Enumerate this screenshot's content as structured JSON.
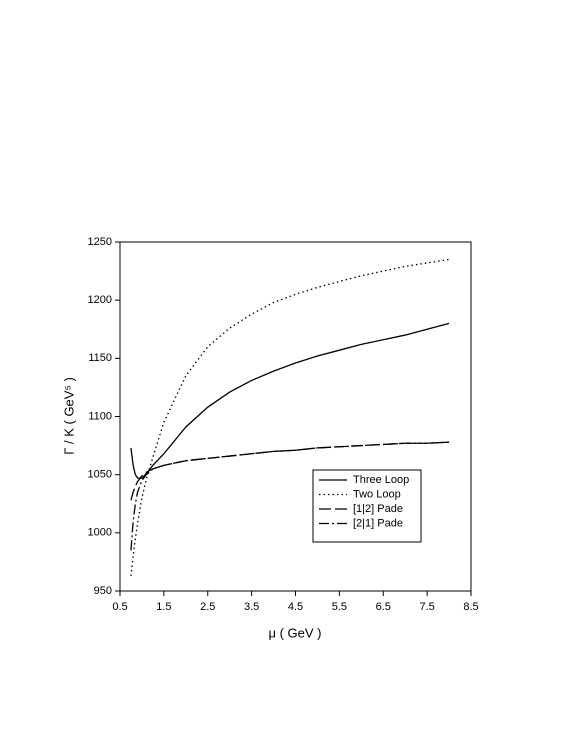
{
  "chart_data": {
    "type": "line",
    "x_label": "μ  ( GeV )",
    "y_label": "Γ / K  ( GeV⁵ )",
    "x": [
      0.75,
      0.8,
      0.85,
      0.9,
      1.0,
      1.1,
      1.25,
      1.5,
      2,
      2.5,
      3,
      3.5,
      4,
      4.5,
      5,
      5.5,
      6,
      6.5,
      7,
      7.5,
      8
    ],
    "series": [
      {
        "name": "Three Loop",
        "color": "#000000",
        "dash": "none",
        "values": [
          1073,
          1058,
          1050,
          1047,
          1047,
          1051,
          1058,
          1068,
          1091,
          1108,
          1121,
          1131,
          1139,
          1146,
          1152,
          1157,
          1162,
          1166,
          1170,
          1175,
          1180
        ]
      },
      {
        "name": "Two Loop",
        "color": "#000000",
        "dash": "1.5,3",
        "values": [
          963,
          980,
          995,
          1008,
          1030,
          1046,
          1065,
          1095,
          1135,
          1160,
          1176,
          1188,
          1198,
          1205,
          1211,
          1216,
          1221,
          1225,
          1229,
          1232,
          1235
        ]
      },
      {
        "name": "[1|2] Pade",
        "color": "#000000",
        "dash": "12,4",
        "values": [
          1028,
          1035,
          1040,
          1044,
          1049,
          1052,
          1055,
          1058,
          1062,
          1064,
          1066,
          1068,
          1070,
          1071,
          1073,
          1074,
          1075,
          1076,
          1077,
          1077,
          1078
        ]
      },
      {
        "name": "[2|1] Pade",
        "color": "#000000",
        "dash": "10,3,2,3",
        "values": [
          985,
          1010,
          1025,
          1035,
          1045,
          1050,
          1055,
          1058,
          1062,
          1064,
          1066,
          1068,
          1070,
          1071,
          1073,
          1074,
          1075,
          1076,
          1077,
          1077,
          1078
        ]
      }
    ],
    "xlim": [
      0.5,
      8.5
    ],
    "xticks": [
      0.5,
      1.5,
      2.5,
      3.5,
      4.5,
      5.5,
      6.5,
      7.5,
      8.5
    ],
    "ylim": [
      950,
      1250
    ],
    "yticks": [
      950,
      1000,
      1050,
      1100,
      1150,
      1200,
      1250
    ],
    "grid": false,
    "legend": "lower right"
  }
}
